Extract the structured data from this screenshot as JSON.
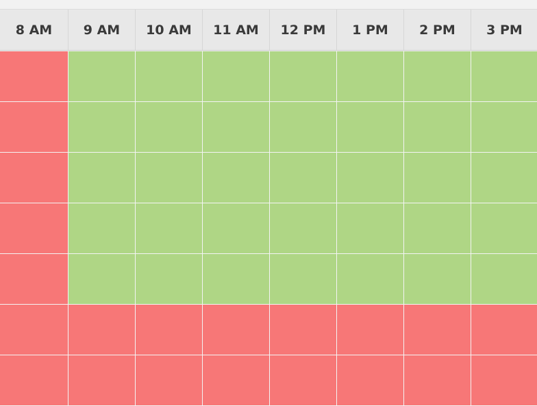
{
  "header": {
    "columns": [
      "8 AM",
      "9 AM",
      "10 AM",
      "11 AM",
      "12 PM",
      "1 PM",
      "2 PM",
      "3 PM"
    ]
  }
}
